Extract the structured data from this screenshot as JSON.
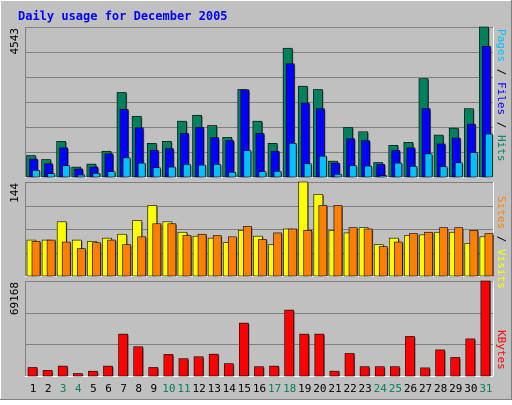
{
  "title": "Daily usage for December 2005",
  "colors": {
    "background": "#c0c0c0",
    "title": "#0000ff",
    "hits": "#00805c",
    "files": "#0000ff",
    "pages": "#00c0ff",
    "visits": "#ffff00",
    "sites": "#ff8000",
    "kbytes": "#ff0000",
    "weekend_label": "#00805c"
  },
  "chart_data": [
    {
      "type": "bar",
      "title": "Daily usage for December 2005",
      "ylabel_top": "4543",
      "legend_vertical": [
        "Pages",
        "Files",
        "Hits"
      ],
      "ylim": [
        0,
        4543
      ],
      "categories": [
        "1",
        "2",
        "3",
        "4",
        "5",
        "6",
        "7",
        "8",
        "9",
        "10",
        "11",
        "12",
        "13",
        "14",
        "15",
        "16",
        "17",
        "18",
        "19",
        "20",
        "21",
        "22",
        "23",
        "24",
        "25",
        "26",
        "27",
        "28",
        "29",
        "30",
        "31"
      ],
      "series": [
        {
          "name": "Hits",
          "values": [
            650,
            530,
            1080,
            300,
            390,
            780,
            2560,
            1840,
            1020,
            1080,
            1690,
            1870,
            1560,
            1200,
            2650,
            1690,
            1020,
            3900,
            2750,
            2650,
            480,
            1500,
            1370,
            440,
            960,
            1050,
            2980,
            1270,
            1480,
            2070,
            4543
          ]
        },
        {
          "name": "Files",
          "values": [
            540,
            400,
            880,
            240,
            300,
            700,
            2050,
            1490,
            810,
            860,
            1320,
            1500,
            1190,
            1100,
            2640,
            1320,
            780,
            3430,
            2240,
            2070,
            420,
            1160,
            1100,
            380,
            800,
            880,
            2070,
            1000,
            1180,
            1600,
            3960
          ]
        },
        {
          "name": "Pages",
          "values": [
            200,
            100,
            340,
            60,
            110,
            160,
            580,
            420,
            280,
            300,
            380,
            360,
            380,
            140,
            800,
            160,
            170,
            1020,
            400,
            630,
            80,
            340,
            330,
            40,
            420,
            320,
            700,
            310,
            430,
            740,
            1300
          ]
        }
      ]
    },
    {
      "type": "bar",
      "ylabel_top": "144",
      "legend_vertical": [
        "Sites",
        "Visits"
      ],
      "ylim": [
        0,
        144
      ],
      "categories": [
        "1",
        "2",
        "3",
        "4",
        "5",
        "6",
        "7",
        "8",
        "9",
        "10",
        "11",
        "12",
        "13",
        "14",
        "15",
        "16",
        "17",
        "18",
        "19",
        "20",
        "21",
        "22",
        "23",
        "24",
        "25",
        "26",
        "27",
        "28",
        "29",
        "30",
        "31"
      ],
      "series": [
        {
          "name": "Visits",
          "values": [
            55,
            55,
            83,
            55,
            53,
            58,
            64,
            85,
            108,
            83,
            67,
            61,
            58,
            51,
            70,
            61,
            48,
            72,
            144,
            125,
            70,
            66,
            74,
            48,
            58,
            62,
            63,
            67,
            67,
            50,
            60
          ]
        },
        {
          "name": "Sites",
          "values": [
            53,
            55,
            52,
            42,
            51,
            55,
            48,
            60,
            80,
            80,
            62,
            64,
            62,
            60,
            76,
            56,
            66,
            72,
            70,
            108,
            108,
            74,
            72,
            45,
            52,
            65,
            67,
            74,
            74,
            70,
            65
          ]
        }
      ]
    },
    {
      "type": "bar",
      "ylabel_top": "69168",
      "legend_vertical": [
        "KBytes"
      ],
      "ylim": [
        0,
        69168
      ],
      "categories": [
        "1",
        "2",
        "3",
        "4",
        "5",
        "6",
        "7",
        "8",
        "9",
        "10",
        "11",
        "12",
        "13",
        "14",
        "15",
        "16",
        "17",
        "18",
        "19",
        "20",
        "21",
        "22",
        "23",
        "24",
        "25",
        "26",
        "27",
        "28",
        "29",
        "30",
        "31"
      ],
      "series": [
        {
          "name": "KBytes",
          "values": [
            6200,
            4100,
            7200,
            1800,
            3500,
            7200,
            30500,
            21300,
            6200,
            15700,
            12600,
            14000,
            15900,
            9000,
            38500,
            6800,
            7200,
            48000,
            30500,
            30500,
            3500,
            16400,
            6800,
            6800,
            6800,
            28800,
            5900,
            19000,
            13500,
            27000,
            69168
          ]
        }
      ]
    }
  ],
  "weekend_days": [
    "3",
    "4",
    "10",
    "11",
    "17",
    "18",
    "24",
    "25",
    "31"
  ]
}
